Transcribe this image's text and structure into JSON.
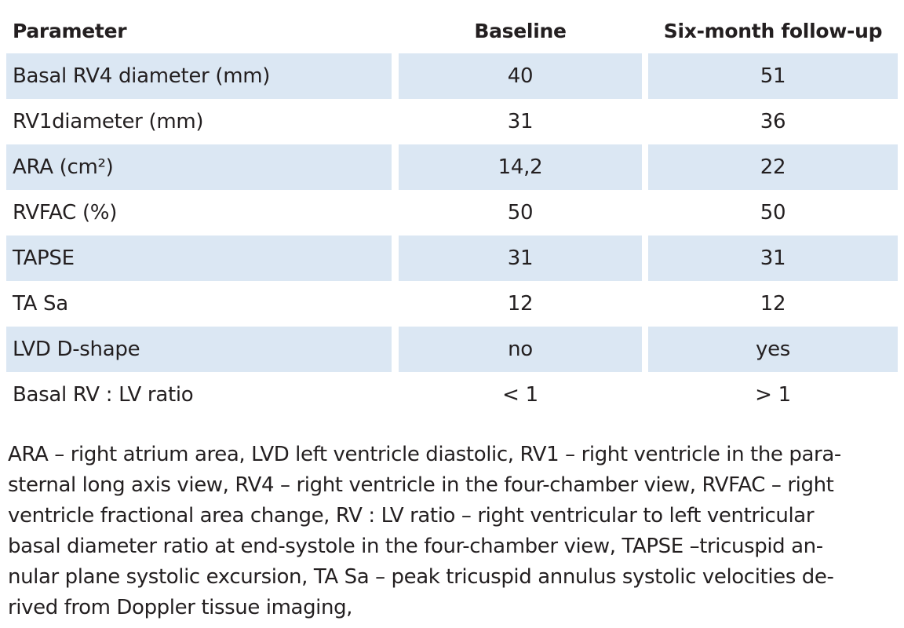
{
  "table": {
    "headers": [
      "Parameter",
      "Baseline",
      "Six-month follow-up"
    ],
    "rows": [
      [
        "Basal RV4 diameter (mm)",
        "40",
        "51"
      ],
      [
        "RV1diameter (mm)",
        "31",
        "36"
      ],
      [
        "ARA (cm²)",
        "14,2",
        "22"
      ],
      [
        "RVFAC (%)",
        "50",
        "50"
      ],
      [
        "TAPSE",
        "31",
        "31"
      ],
      [
        "TA Sa",
        "12",
        "12"
      ],
      [
        "LVD D-shape",
        "no",
        "yes"
      ],
      [
        "Basal RV : LV ratio",
        "< 1",
        "> 1"
      ]
    ],
    "shade_color": "#dbe7f3"
  },
  "footnote": {
    "lines": [
      "ARA – right atrium area, LVD left ventricle diastolic, RV1 – right ventricle in the para-",
      "sternal long axis view, RV4 – right ventricle in the four-chamber view, RVFAC – right",
      "ventricle fractional area change, RV : LV ratio – right ventricular to left ventricular",
      "basal diameter ratio at end-systole in the four-chamber view, TAPSE –tricuspid an-",
      "nular plane systolic excursion, TA Sa – peak tricuspid annulus systolic velocities de-",
      "rived from Doppler tissue imaging,"
    ]
  }
}
